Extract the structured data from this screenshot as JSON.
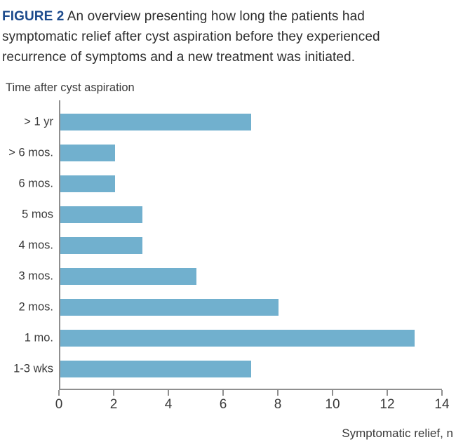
{
  "figure_caption": {
    "label": "FIGURE 2",
    "text": "An overview presenting how long the patients had symptomatic relief after cyst aspiration before they experienced recurrence of symptoms and a new treatment was initiated."
  },
  "chart_data": {
    "type": "bar",
    "orientation": "horizontal",
    "title": "Time after cyst aspiration",
    "categories": [
      "> 1 yr",
      "> 6 mos.",
      "6 mos.",
      "5 mos",
      "4 mos.",
      "3 mos.",
      "2 mos.",
      "1 mo.",
      "1-3 wks"
    ],
    "values": [
      7,
      2,
      2,
      3,
      3,
      5,
      8,
      13,
      7
    ],
    "xlabel": "Symptomatic relief, n",
    "ylabel": "Time after cyst aspiration",
    "xlim": [
      0,
      14
    ],
    "xticks": [
      0,
      2,
      4,
      6,
      8,
      10,
      12,
      14
    ],
    "grid": false,
    "legend": "none"
  },
  "colors": {
    "figure_label": "#1c4a8c",
    "bar": "#71b0ce",
    "axis": "#8f8f8f",
    "text": "#3a3a3a",
    "caption_text": "#2d2d2d"
  }
}
